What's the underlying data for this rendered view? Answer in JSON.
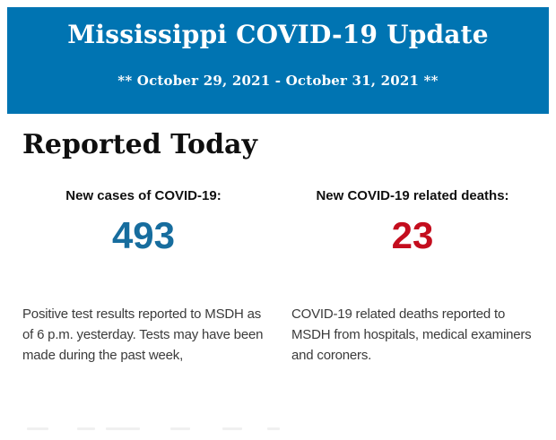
{
  "header": {
    "title": "Mississippi COVID-19 Update",
    "date_range": "** October 29, 2021 - October 31, 2021 **",
    "background_color": "#0074b2",
    "text_color": "#ffffff"
  },
  "main": {
    "section_title": "Reported Today",
    "stats": [
      {
        "label": "New cases of COVID-19:",
        "value": "493",
        "value_color": "#176d9e",
        "description": "Positive test results reported to MSDH as of 6 p.m. yesterday. Tests may have been made during the past week,"
      },
      {
        "label": "New COVID-19 related deaths:",
        "value": "23",
        "value_color": "#c40d1e",
        "description": "COVID-19 related deaths reported to MSDH from hospitals, medical examiners and coroners."
      }
    ]
  }
}
